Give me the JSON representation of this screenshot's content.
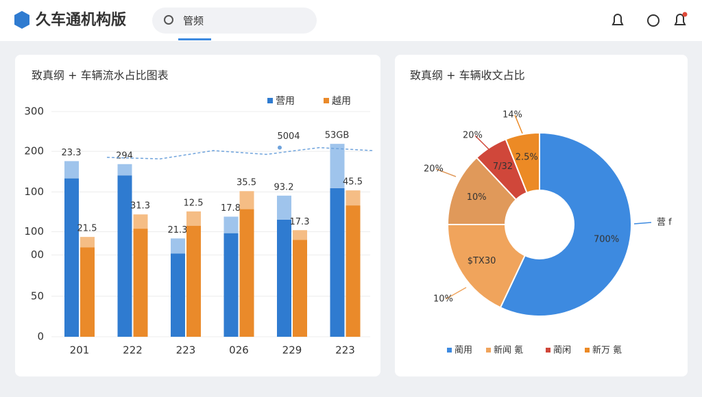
{
  "header": {
    "title": "久车通机构版",
    "search_placeholder": "管频"
  },
  "chart_data": [
    {
      "type": "bar",
      "title": "致真纲 + 车辆流水占比图表",
      "categories": [
        "201",
        "222",
        "223",
        "026",
        "229",
        "223"
      ],
      "ylim": [
        0,
        300
      ],
      "yticks": [
        0,
        {
          "value": 54,
          "label": "50"
        },
        {
          "value": 109,
          "label": "00"
        },
        {
          "value": 140,
          "label": "100"
        },
        {
          "value": 193,
          "label": "100"
        },
        {
          "value": 247,
          "label": "200"
        },
        300
      ],
      "grid": true,
      "legend": "top-right",
      "series": [
        {
          "name": "营用",
          "color": "#2f7bd0",
          "top_color": "#9fc4ec",
          "values": [
            211,
            215,
            111,
            138,
            156,
            198
          ],
          "top_values": [
            23,
            15,
            20,
            22,
            32,
            59
          ],
          "bar_labels": [
            "23.3",
            "294",
            "21.3",
            "17.8",
            "93.2",
            "53GB"
          ]
        },
        {
          "name": "越用",
          "color": "#ea8a2a",
          "top_color": "#f5bd85",
          "values": [
            119,
            144,
            148,
            170,
            129,
            175
          ],
          "top_values": [
            14,
            19,
            19,
            24,
            13,
            20
          ],
          "bar_labels": [
            "21.5",
            "31.3",
            "12.5",
            "35.5",
            "17.3",
            "45.5"
          ]
        }
      ],
      "trend": {
        "color": "#6fa3dc",
        "values": [
          239,
          237,
          248,
          243,
          252,
          248
        ]
      },
      "annotations": [
        "5004"
      ]
    },
    {
      "type": "pie",
      "title": "致真纲 + 车辆收文占比",
      "categories": [
        "蔺用",
        "新闻 氪",
        null,
        "蔺闲",
        "新万 氪"
      ],
      "values": [
        57,
        18,
        13,
        6,
        6
      ],
      "colors": [
        "#3d8ae0",
        "#f0a45c",
        "#e0995a",
        "#d0473a",
        "#ec8a25"
      ],
      "inner_labels": [
        "700%",
        "$TX30",
        "10%",
        "7/32",
        "2.5%"
      ],
      "callouts": [
        "营 f",
        "10%",
        "20%",
        "20%",
        "14%"
      ],
      "donut": true,
      "legend": "bottom"
    }
  ]
}
